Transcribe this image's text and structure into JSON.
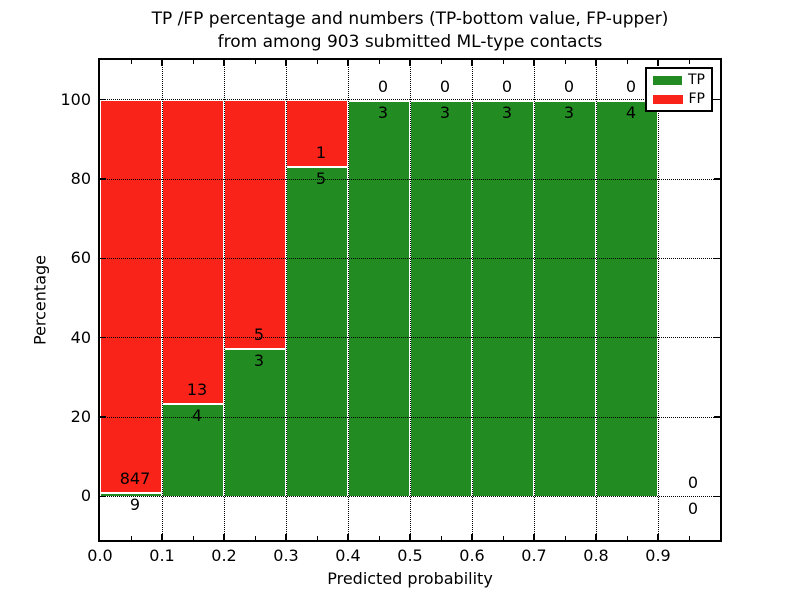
{
  "title": {
    "line1": "TP /FP percentage and numbers (TP-bottom value, FP-upper)",
    "line2": "from among 903 submitted ML-type contacts"
  },
  "axes": {
    "xlabel": "Predicted probability",
    "ylabel": "Percentage",
    "xticks": [
      "0.0",
      "0.1",
      "0.2",
      "0.3",
      "0.4",
      "0.5",
      "0.6",
      "0.7",
      "0.8",
      "0.9"
    ],
    "yticks": [
      "0",
      "20",
      "40",
      "60",
      "80",
      "100"
    ]
  },
  "legend": {
    "items": [
      {
        "label": "TP",
        "color": "#228b22"
      },
      {
        "label": "FP",
        "color": "#fa231a"
      }
    ]
  },
  "chart_data": {
    "type": "bar",
    "subtype": "stacked-100-percent",
    "title": "TP /FP percentage and numbers (TP-bottom value, FP-upper) from among 903 submitted ML-type contacts",
    "xlabel": "Predicted probability",
    "ylabel": "Percentage",
    "xlim": [
      0.0,
      1.0
    ],
    "ylim": [
      -11,
      110
    ],
    "grid": "dotted",
    "legend_position": "upper-right",
    "bin_width": 0.1,
    "categories": [
      "0.0-0.1",
      "0.1-0.2",
      "0.2-0.3",
      "0.3-0.4",
      "0.4-0.5",
      "0.5-0.6",
      "0.6-0.7",
      "0.7-0.8",
      "0.8-0.9",
      "0.9-1.0"
    ],
    "series": [
      {
        "name": "TP",
        "color": "#228b22",
        "counts": [
          9,
          4,
          3,
          5,
          3,
          3,
          3,
          3,
          4,
          0
        ]
      },
      {
        "name": "FP",
        "color": "#fa231a",
        "counts": [
          847,
          13,
          5,
          1,
          0,
          0,
          0,
          0,
          0,
          0
        ]
      }
    ],
    "tp_percent": [
      1.05,
      23.53,
      37.5,
      83.33,
      100,
      100,
      100,
      100,
      100,
      0
    ],
    "total_contacts": 903
  }
}
